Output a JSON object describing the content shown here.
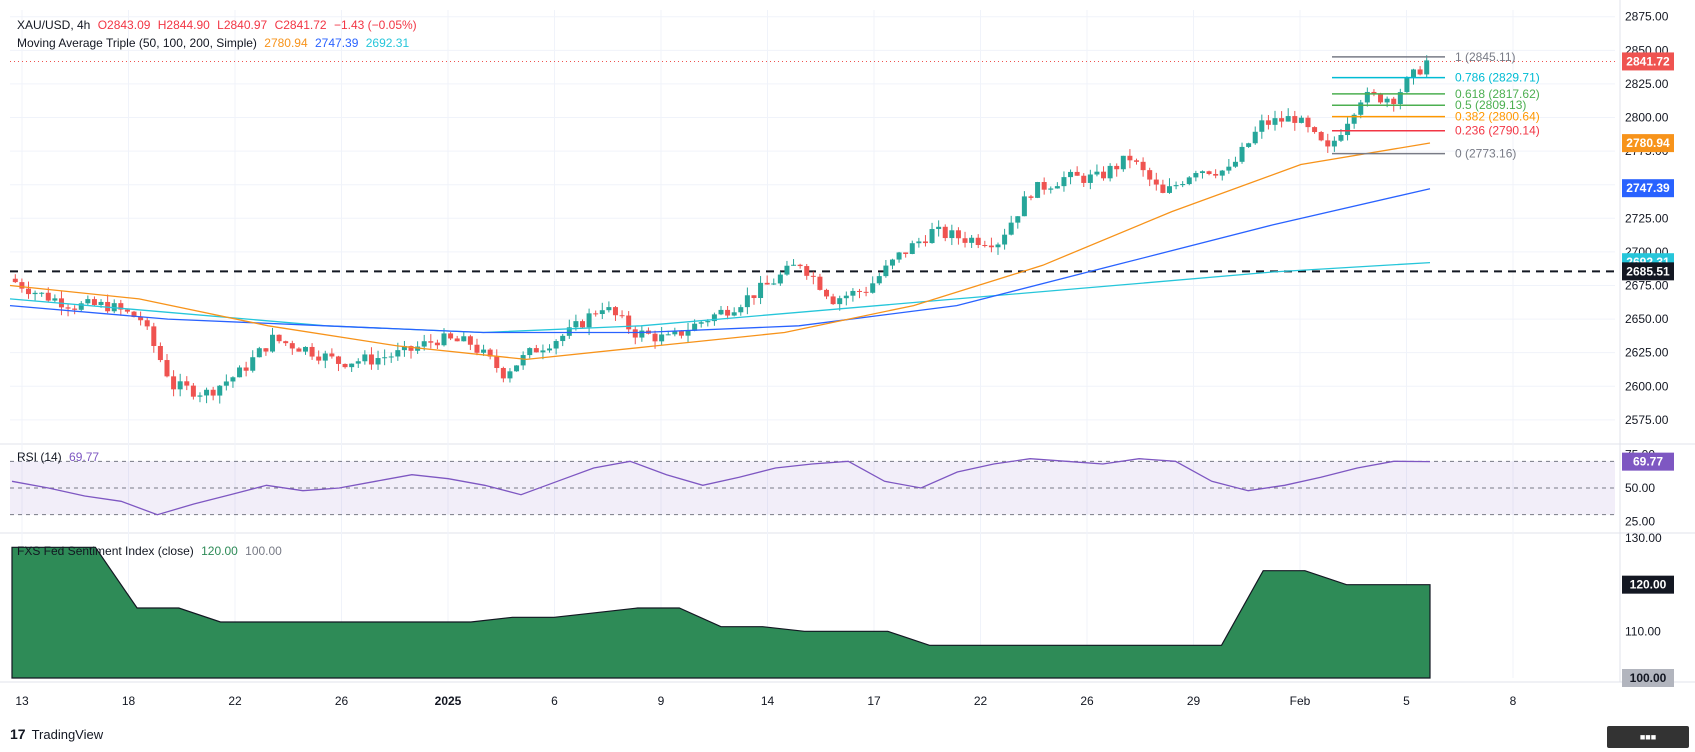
{
  "header": {
    "symbol": "XAU/USD, 4h",
    "open": "O2843.09",
    "high": "H2844.90",
    "low": "L2840.97",
    "close": "C2841.72",
    "change": "−1.43 (−0.05%)",
    "ma_label": "Moving Average Triple (50, 100, 200, Simple)",
    "ma_values": [
      "2780.94",
      "2747.39",
      "2692.31"
    ]
  },
  "rsi_label": "RSI (14)",
  "rsi_value": "69.77",
  "sentiment_label": "FXS Fed Sentiment Index (close)",
  "sentiment_values": [
    "120.00",
    "100.00"
  ],
  "brand": "TradingView",
  "colors": {
    "up": "#26a69a",
    "down": "#ef5350",
    "ma50": "#f7931a",
    "ma100": "#2962ff",
    "ma200": "#26c6da",
    "rsi": "#7e57c2",
    "sentiment": "#2e8b57",
    "fib_1": "#787b86",
    "fib_786": "#00bcd4",
    "fib_618": "#4caf50",
    "fib_5": "#4caf50",
    "fib_382": "#ff9800",
    "fib_236": "#f23645",
    "fib_0": "#787b86"
  },
  "chart_data": [
    {
      "type": "candlestick",
      "title": "XAU/USD, 4h",
      "x_ticks": [
        "13",
        "18",
        "22",
        "26",
        "2025",
        "6",
        "9",
        "14",
        "17",
        "22",
        "26",
        "29",
        "Feb",
        "5",
        "8"
      ],
      "y_ticks": [
        2575,
        2600,
        2625,
        2650,
        2675,
        2700,
        2725,
        2750,
        2775,
        2800,
        2825,
        2850,
        2875
      ],
      "ylim": [
        2560,
        2880
      ],
      "horizontal_line": 2685.51,
      "price_labels": [
        "2841.72",
        "2780.94",
        "2747.39",
        "2692.31",
        "2685.51"
      ],
      "fibonacci": [
        {
          "label": "1 (2845.11)",
          "value": 2845.11
        },
        {
          "label": "0.786 (2829.71)",
          "value": 2829.71
        },
        {
          "label": "0.618 (2817.62)",
          "value": 2817.62
        },
        {
          "label": "0.5 (2809.13)",
          "value": 2809.13
        },
        {
          "label": "0.382 (2800.64)",
          "value": 2800.64
        },
        {
          "label": "0.236 (2790.14)",
          "value": 2790.14
        },
        {
          "label": "0 (2773.16)",
          "value": 2773.16
        }
      ],
      "key_closes": [
        {
          "x": "13",
          "value": 2680
        },
        {
          "x": "14",
          "value": 2668
        },
        {
          "x": "15",
          "value": 2660
        },
        {
          "x": "16",
          "value": 2660
        },
        {
          "x": "17",
          "value": 2650
        },
        {
          "x": "18",
          "value": 2600
        },
        {
          "x": "19",
          "value": 2595
        },
        {
          "x": "20",
          "value": 2610
        },
        {
          "x": "21",
          "value": 2635
        },
        {
          "x": "22",
          "value": 2628
        },
        {
          "x": "23",
          "value": 2618
        },
        {
          "x": "24",
          "value": 2620
        },
        {
          "x": "25",
          "value": 2625
        },
        {
          "x": "26",
          "value": 2635
        },
        {
          "x": "27",
          "value": 2632
        },
        {
          "x": "30",
          "value": 2610
        },
        {
          "x": "31",
          "value": 2628
        },
        {
          "x": "2025",
          "value": 2640
        },
        {
          "x": "2",
          "value": 2660
        },
        {
          "x": "3",
          "value": 2640
        },
        {
          "x": "6",
          "value": 2635
        },
        {
          "x": "7",
          "value": 2648
        },
        {
          "x": "8",
          "value": 2660
        },
        {
          "x": "9",
          "value": 2675
        },
        {
          "x": "10",
          "value": 2692
        },
        {
          "x": "13",
          "value": 2665
        },
        {
          "x": "14",
          "value": 2672
        },
        {
          "x": "15",
          "value": 2697
        },
        {
          "x": "16",
          "value": 2715
        },
        {
          "x": "17",
          "value": 2710
        },
        {
          "x": "20",
          "value": 2708
        },
        {
          "x": "21",
          "value": 2745
        },
        {
          "x": "22",
          "value": 2755
        },
        {
          "x": "23",
          "value": 2755
        },
        {
          "x": "24",
          "value": 2770
        },
        {
          "x": "27",
          "value": 2742
        },
        {
          "x": "28",
          "value": 2762
        },
        {
          "x": "29",
          "value": 2760
        },
        {
          "x": "30",
          "value": 2795
        },
        {
          "x": "31",
          "value": 2800
        },
        {
          "x": "Feb",
          "value": 2775
        },
        {
          "x": "2",
          "value": 2815
        },
        {
          "x": "3",
          "value": 2815
        },
        {
          "x": "4",
          "value": 2841.72
        }
      ],
      "ma50_points": [
        2675,
        2665,
        2645,
        2630,
        2620,
        2630,
        2640,
        2660,
        2690,
        2730,
        2765,
        2781
      ],
      "ma100_points": [
        2660,
        2650,
        2645,
        2640,
        2640,
        2645,
        2660,
        2690,
        2720,
        2747
      ],
      "ma200_points": [
        2665,
        2655,
        2645,
        2640,
        2645,
        2655,
        2665,
        2675,
        2685,
        2692
      ]
    },
    {
      "type": "line",
      "title": "RSI (14)",
      "y_ticks": [
        25,
        50,
        75
      ],
      "ylim": [
        20,
        80
      ],
      "levels": [
        30,
        50,
        70
      ],
      "values": [
        55,
        50,
        44,
        40,
        30,
        38,
        45,
        52,
        48,
        50,
        55,
        60,
        57,
        52,
        45,
        55,
        65,
        70,
        60,
        52,
        58,
        65,
        68,
        70,
        55,
        50,
        62,
        68,
        72,
        70,
        68,
        72,
        70,
        55,
        48,
        52,
        58,
        65,
        70,
        69.77
      ]
    },
    {
      "type": "area",
      "title": "FXS Fed Sentiment Index (close)",
      "y_ticks": [
        100,
        110,
        120,
        130
      ],
      "ylim": [
        100,
        130
      ],
      "values": [
        128,
        128,
        128,
        115,
        115,
        112,
        112,
        112,
        112,
        112,
        112,
        112,
        113,
        113,
        114,
        115,
        115,
        111,
        111,
        110,
        110,
        110,
        107,
        107,
        107,
        107,
        107,
        107,
        107,
        107,
        123,
        123,
        120,
        120,
        120
      ],
      "price_labels": [
        "120.00",
        "100.00"
      ]
    }
  ]
}
